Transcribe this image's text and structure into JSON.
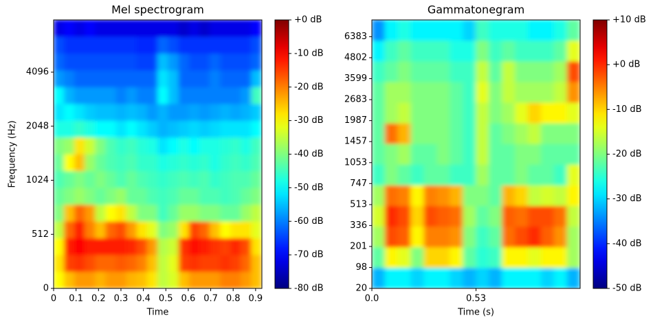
{
  "chart_data": [
    {
      "type": "heatmap",
      "title": "Mel spectrogram",
      "xlabel": "Time",
      "ylabel": "Frequency (Hz)",
      "colormap": "jet",
      "yscale": "symlog",
      "ylinthresh": 512,
      "ybase": 2,
      "xlim": [
        0,
        0.928
      ],
      "ylim": [
        0,
        8000
      ],
      "xticks": [
        0,
        0.1,
        0.2,
        0.3,
        0.4,
        0.5,
        0.6,
        0.7,
        0.8,
        0.9
      ],
      "yticks": [
        0,
        512,
        1024,
        2048,
        4096
      ],
      "clim": [
        -80,
        0
      ],
      "cticks": [
        {
          "value": 0,
          "label": "+0 dB"
        },
        {
          "value": -10,
          "label": "-10 dB"
        },
        {
          "value": -20,
          "label": "-20 dB"
        },
        {
          "value": -30,
          "label": "-30 dB"
        },
        {
          "value": -40,
          "label": "-40 dB"
        },
        {
          "value": -50,
          "label": "-50 dB"
        },
        {
          "value": -60,
          "label": "-60 dB"
        },
        {
          "value": -70,
          "label": "-70 dB"
        },
        {
          "value": -80,
          "label": "-80 dB"
        }
      ],
      "z": [
        [
          -30,
          -25,
          -22,
          -22,
          -24,
          -22,
          -22,
          -24,
          -25,
          -28,
          -35,
          -33,
          -25,
          -22,
          -22,
          -22,
          -20,
          -20,
          -22,
          -25
        ],
        [
          -28,
          -15,
          -14,
          -16,
          -18,
          -18,
          -17,
          -18,
          -20,
          -25,
          -35,
          -32,
          -15,
          -14,
          -15,
          -15,
          -14,
          -15,
          -18,
          -25
        ],
        [
          -30,
          -12,
          -10,
          -12,
          -12,
          -12,
          -12,
          -13,
          -16,
          -22,
          -36,
          -34,
          -14,
          -11,
          -12,
          -14,
          -15,
          -13,
          -16,
          -28
        ],
        [
          -35,
          -18,
          -12,
          -20,
          -25,
          -18,
          -16,
          -22,
          -28,
          -32,
          -40,
          -38,
          -28,
          -15,
          -18,
          -25,
          -30,
          -28,
          -28,
          -32
        ],
        [
          -40,
          -25,
          -18,
          -22,
          -35,
          -30,
          -28,
          -35,
          -40,
          -40,
          -45,
          -42,
          -38,
          -38,
          -40,
          -40,
          -42,
          -42,
          -38,
          -35
        ],
        [
          -42,
          -40,
          -38,
          -40,
          -42,
          -40,
          -38,
          -42,
          -42,
          -44,
          -45,
          -44,
          -42,
          -42,
          -44,
          -44,
          -45,
          -44,
          -42,
          -40
        ],
        [
          -44,
          -42,
          -40,
          -42,
          -40,
          -42,
          -44,
          -42,
          -44,
          -45,
          -46,
          -45,
          -44,
          -45,
          -44,
          -46,
          -45,
          -44,
          -44,
          -42
        ],
        [
          -42,
          -30,
          -25,
          -38,
          -42,
          -44,
          -45,
          -44,
          -46,
          -46,
          -48,
          -47,
          -46,
          -47,
          -46,
          -48,
          -46,
          -45,
          -46,
          -44
        ],
        [
          -40,
          -38,
          -28,
          -34,
          -40,
          -44,
          -46,
          -45,
          -47,
          -48,
          -52,
          -50,
          -48,
          -50,
          -48,
          -48,
          -47,
          -46,
          -48,
          -45
        ],
        [
          -48,
          -48,
          -46,
          -48,
          -50,
          -50,
          -52,
          -50,
          -52,
          -54,
          -56,
          -55,
          -54,
          -53,
          -54,
          -53,
          -52,
          -52,
          -52,
          -50
        ],
        [
          -52,
          -50,
          -52,
          -54,
          -55,
          -55,
          -56,
          -55,
          -56,
          -58,
          -56,
          -58,
          -58,
          -57,
          -58,
          -57,
          -56,
          -57,
          -56,
          -54
        ],
        [
          -50,
          -56,
          -58,
          -58,
          -58,
          -58,
          -60,
          -58,
          -60,
          -60,
          -50,
          -55,
          -60,
          -60,
          -60,
          -60,
          -60,
          -60,
          -58,
          -45
        ],
        [
          -58,
          -60,
          -62,
          -62,
          -62,
          -62,
          -62,
          -62,
          -62,
          -62,
          -52,
          -55,
          -62,
          -62,
          -62,
          -60,
          -62,
          -62,
          -62,
          -55
        ],
        [
          -62,
          -64,
          -64,
          -64,
          -64,
          -64,
          -64,
          -64,
          -65,
          -65,
          -55,
          -58,
          -62,
          -64,
          -64,
          -62,
          -64,
          -64,
          -64,
          -62
        ],
        [
          -64,
          -66,
          -66,
          -66,
          -66,
          -66,
          -66,
          -66,
          -67,
          -67,
          -62,
          -64,
          -66,
          -66,
          -66,
          -66,
          -66,
          -66,
          -66,
          -64
        ],
        [
          -72,
          -70,
          -72,
          -70,
          -72,
          -72,
          -72,
          -72,
          -72,
          -72,
          -72,
          -72,
          -74,
          -72,
          -74,
          -72,
          -72,
          -72,
          -72,
          -70
        ]
      ]
    },
    {
      "type": "heatmap",
      "title": "Gammatonegram",
      "xlabel": "Time (s)",
      "colormap": "jet",
      "yscale": "erb",
      "xlim": [
        0,
        1.06
      ],
      "ylim": [
        20,
        8000
      ],
      "xticks": [
        {
          "value": 0,
          "label": "0.0"
        },
        0.53
      ],
      "yticks": [
        20,
        98,
        201,
        336,
        513,
        747,
        1053,
        1457,
        1987,
        2683,
        3599,
        4802,
        6383
      ],
      "clim": [
        -50,
        10
      ],
      "cticks": [
        {
          "value": 10,
          "label": "+10 dB"
        },
        {
          "value": 0,
          "label": "+0 dB"
        },
        {
          "value": -10,
          "label": "-10 dB"
        },
        {
          "value": -20,
          "label": "-20 dB"
        },
        {
          "value": -30,
          "label": "-30 dB"
        },
        {
          "value": -40,
          "label": "-40 dB"
        },
        {
          "value": -50,
          "label": "-50 dB"
        }
      ],
      "z": [
        [
          -32,
          -28,
          -28,
          -30,
          -28,
          -28,
          -30,
          -32,
          -30,
          -32,
          -28,
          -28,
          -28,
          -30,
          -28,
          -32
        ],
        [
          -22,
          -12,
          -14,
          -20,
          -10,
          -10,
          -12,
          -22,
          -25,
          -24,
          -12,
          -12,
          -14,
          -12,
          -12,
          -18
        ],
        [
          -18,
          -2,
          -3,
          -12,
          -5,
          -5,
          -6,
          -20,
          -24,
          -22,
          -4,
          -2,
          0,
          -3,
          -6,
          -18
        ],
        [
          -15,
          0,
          -2,
          -10,
          -2,
          -3,
          -4,
          -18,
          -22,
          -20,
          -3,
          -4,
          -2,
          -2,
          -4,
          -16
        ],
        [
          -18,
          -4,
          -5,
          -12,
          -5,
          -6,
          -8,
          -20,
          -20,
          -22,
          -8,
          -10,
          -16,
          -15,
          -16,
          -12
        ],
        [
          -24,
          -20,
          -22,
          -24,
          -22,
          -22,
          -24,
          -24,
          -18,
          -22,
          -22,
          -20,
          -22,
          -22,
          -24,
          -14
        ],
        [
          -22,
          -20,
          -18,
          -22,
          -22,
          -20,
          -22,
          -24,
          -16,
          -22,
          -22,
          -20,
          -20,
          -22,
          -22,
          -22
        ],
        [
          -22,
          -4,
          -8,
          -20,
          -20,
          -20,
          -22,
          -24,
          -16,
          -22,
          -20,
          -18,
          -16,
          -20,
          -20,
          -20
        ],
        [
          -22,
          -18,
          -16,
          -20,
          -20,
          -20,
          -22,
          -24,
          -16,
          -20,
          -18,
          -14,
          -10,
          -12,
          -12,
          -14
        ],
        [
          -22,
          -18,
          -18,
          -20,
          -20,
          -20,
          -22,
          -24,
          -14,
          -20,
          -16,
          -18,
          -18,
          -18,
          -16,
          -6
        ],
        [
          -24,
          -22,
          -20,
          -22,
          -22,
          -22,
          -24,
          -24,
          -16,
          -22,
          -16,
          -20,
          -20,
          -20,
          -18,
          -2
        ],
        [
          -28,
          -24,
          -22,
          -24,
          -24,
          -24,
          -26,
          -26,
          -20,
          -24,
          -22,
          -24,
          -24,
          -24,
          -22,
          -14
        ],
        [
          -34,
          -28,
          -26,
          -28,
          -28,
          -28,
          -28,
          -30,
          -24,
          -26,
          -26,
          -26,
          -28,
          -28,
          -26,
          -22
        ]
      ]
    }
  ]
}
